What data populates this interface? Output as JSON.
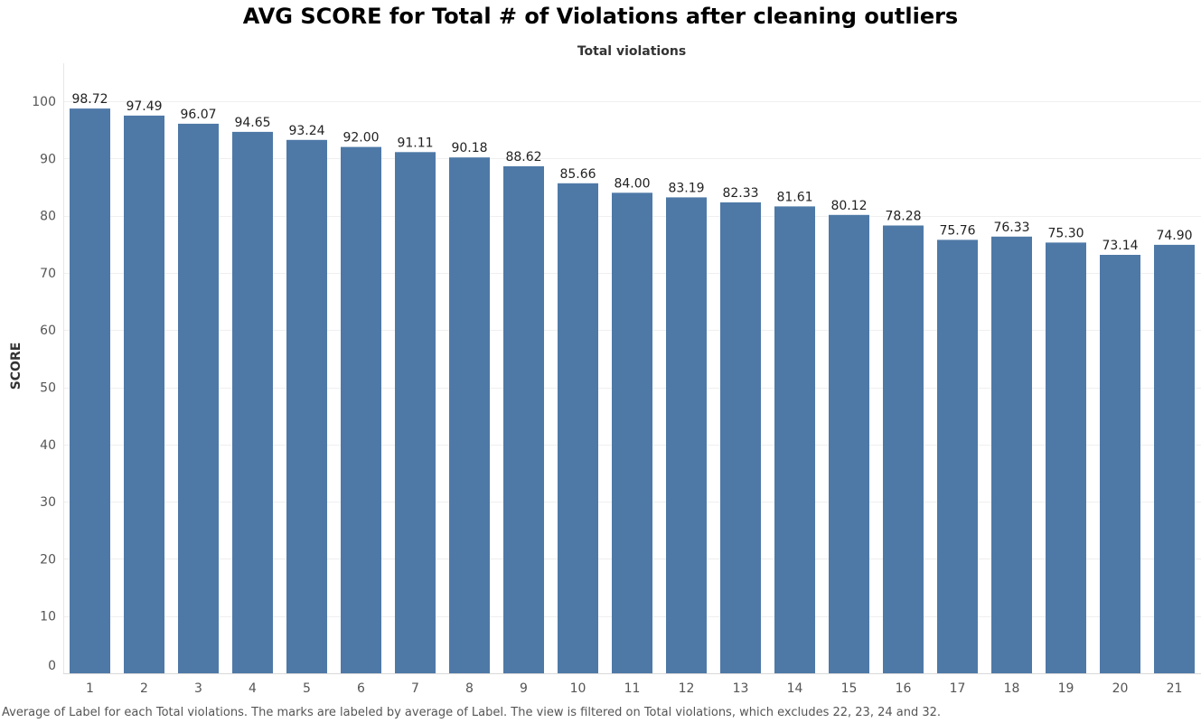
{
  "chart_data": {
    "type": "bar",
    "title": "AVG SCORE for Total # of Violations after cleaning outliers",
    "xlabel": "Total violations",
    "ylabel": "SCORE",
    "categories": [
      "1",
      "2",
      "3",
      "4",
      "5",
      "6",
      "7",
      "8",
      "9",
      "10",
      "11",
      "12",
      "13",
      "14",
      "15",
      "16",
      "17",
      "18",
      "19",
      "20",
      "21"
    ],
    "values": [
      98.72,
      97.49,
      96.07,
      94.65,
      93.24,
      92.0,
      91.11,
      90.18,
      88.62,
      85.66,
      84.0,
      83.19,
      82.33,
      81.61,
      80.12,
      78.28,
      75.76,
      76.33,
      75.3,
      73.14,
      74.9
    ],
    "data_labels": [
      "98.72",
      "97.49",
      "96.07",
      "94.65",
      "93.24",
      "92.00",
      "91.11",
      "90.18",
      "88.62",
      "85.66",
      "84.00",
      "83.19",
      "82.33",
      "81.61",
      "80.12",
      "78.28",
      "75.76",
      "76.33",
      "75.30",
      "73.14",
      "74.90"
    ],
    "ylim": [
      0,
      100
    ],
    "yticks": [
      0,
      10,
      20,
      30,
      40,
      50,
      60,
      70,
      80,
      90,
      100
    ],
    "grid": true,
    "x_axis_position": "bottom",
    "xlabel_position": "top",
    "bar_color": "#4e79a7",
    "caption": "Average of Label for each Total violations.  The marks are labeled by average of Label. The view is filtered on Total violations, which excludes 22, 23, 24 and 32."
  }
}
